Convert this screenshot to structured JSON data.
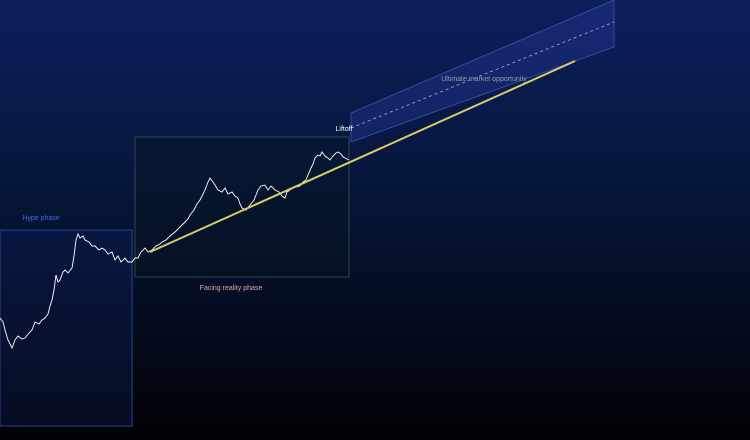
{
  "annotations": {
    "hype": "Hype phase",
    "reality": "Facing reality phase",
    "liftoff": "Liftoff",
    "opportunity": "Ultimate market opportunity"
  }
}
